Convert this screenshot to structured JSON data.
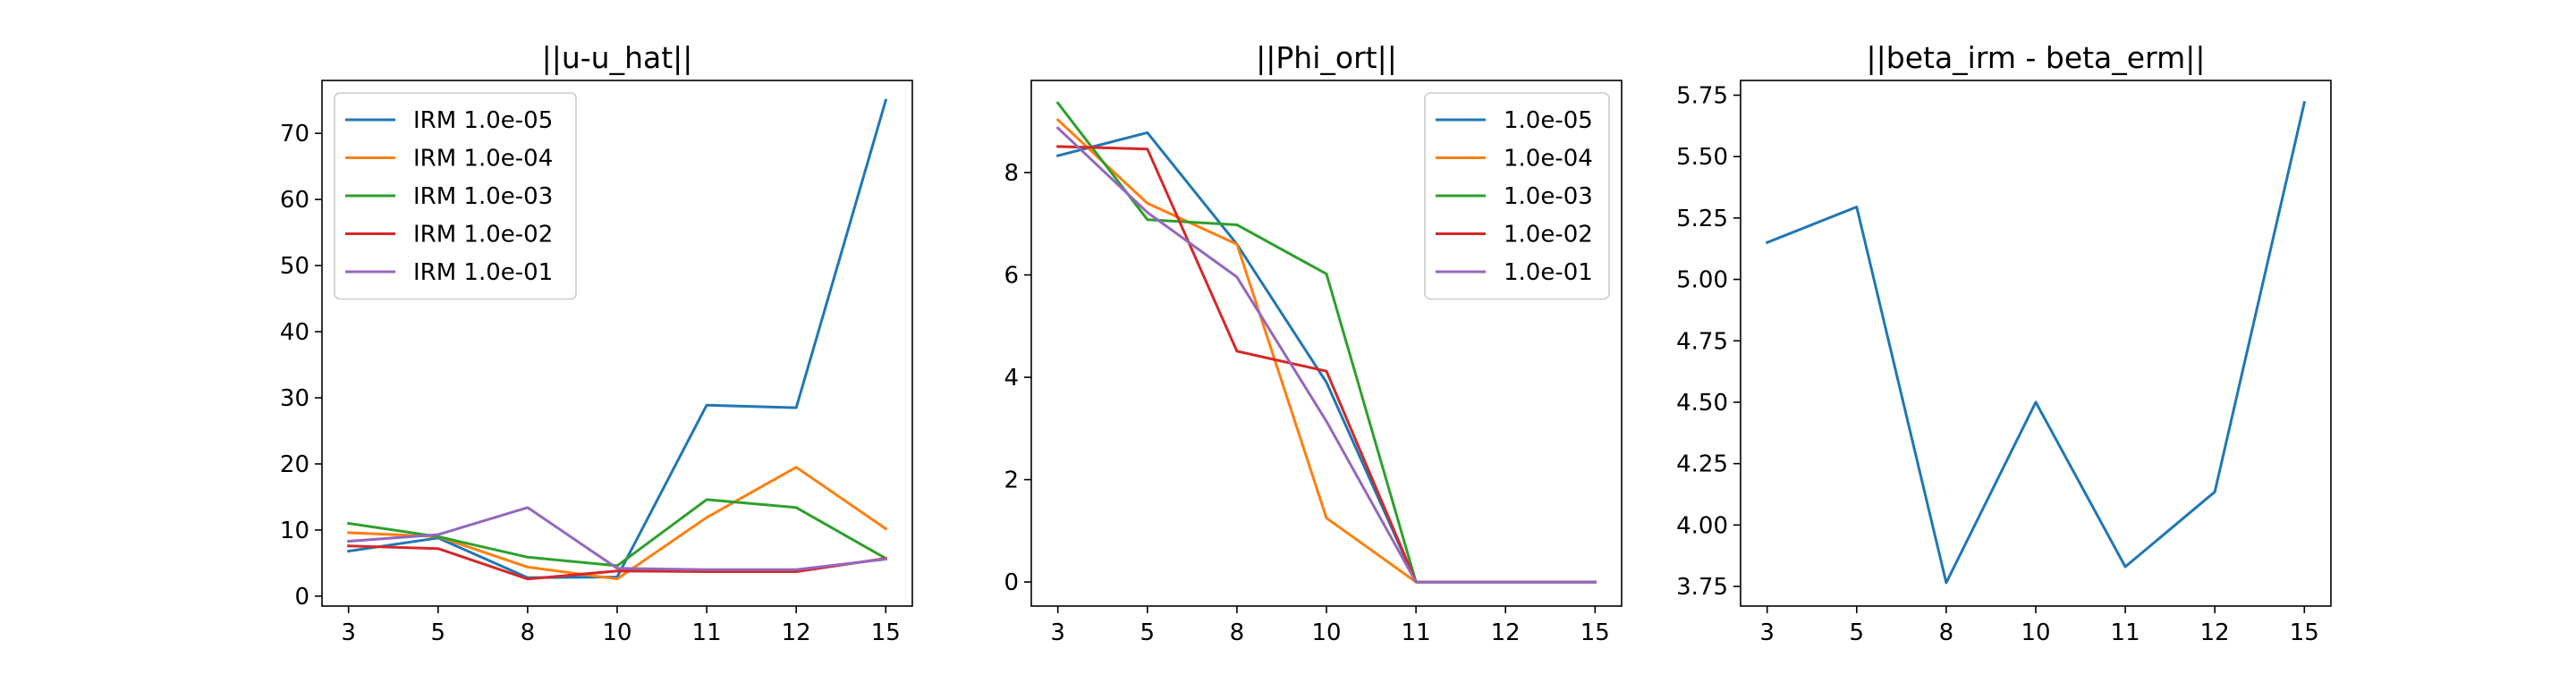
{
  "chart_data": [
    {
      "type": "line",
      "title": "||u-u_hat||",
      "categories": [
        "3",
        "5",
        "8",
        "10",
        "11",
        "12",
        "15"
      ],
      "ylim": [
        -1.5,
        78
      ],
      "yticks": [
        0,
        10,
        20,
        30,
        40,
        50,
        60,
        70
      ],
      "legend": "upper-left",
      "series": [
        {
          "name": "IRM 1.0e-05",
          "color": "#1f77b4",
          "values": [
            6.8,
            8.8,
            2.8,
            2.9,
            28.9,
            28.5,
            75.0
          ]
        },
        {
          "name": "IRM 1.0e-04",
          "color": "#ff7f0e",
          "values": [
            9.6,
            9.0,
            4.4,
            2.6,
            11.9,
            19.5,
            10.2
          ]
        },
        {
          "name": "IRM 1.0e-03",
          "color": "#2ca02c",
          "values": [
            11.0,
            9.0,
            5.9,
            4.6,
            14.6,
            13.4,
            5.7
          ]
        },
        {
          "name": "IRM 1.0e-02",
          "color": "#d62728",
          "values": [
            7.6,
            7.2,
            2.6,
            3.8,
            3.7,
            3.7,
            5.7
          ]
        },
        {
          "name": "IRM 1.0e-01",
          "color": "#9467bd",
          "values": [
            8.3,
            9.3,
            13.4,
            4.2,
            4.0,
            4.0,
            5.6
          ]
        }
      ]
    },
    {
      "type": "line",
      "title": "||Phi_ort||",
      "categories": [
        "3",
        "5",
        "8",
        "10",
        "11",
        "12",
        "15"
      ],
      "ylim": [
        -0.47,
        9.8
      ],
      "yticks": [
        0,
        2,
        4,
        6,
        8
      ],
      "legend": "upper-right",
      "series": [
        {
          "name": "1.0e-05",
          "color": "#1f77b4",
          "values": [
            8.33,
            8.78,
            6.6,
            3.9,
            0.0,
            0.0,
            0.0
          ]
        },
        {
          "name": "1.0e-04",
          "color": "#ff7f0e",
          "values": [
            9.03,
            7.4,
            6.6,
            1.25,
            0.0,
            0.0,
            0.0
          ]
        },
        {
          "name": "1.0e-03",
          "color": "#2ca02c",
          "values": [
            9.36,
            7.08,
            6.98,
            6.02,
            0.0,
            0.0,
            0.0
          ]
        },
        {
          "name": "1.0e-02",
          "color": "#d62728",
          "values": [
            8.51,
            8.46,
            4.51,
            4.12,
            0.0,
            0.0,
            0.0
          ]
        },
        {
          "name": "1.0e-01",
          "color": "#9467bd",
          "values": [
            8.87,
            7.22,
            5.96,
            3.14,
            0.0,
            0.0,
            0.0
          ]
        }
      ]
    },
    {
      "type": "line",
      "title": "||beta_irm - beta_erm||",
      "categories": [
        "3",
        "5",
        "8",
        "10",
        "11",
        "12",
        "15"
      ],
      "ylim": [
        3.67,
        5.81
      ],
      "yticks": [
        "3.75",
        "4.00",
        "4.25",
        "4.50",
        "4.75",
        "5.00",
        "5.25",
        "5.50",
        "5.75"
      ],
      "series": [
        {
          "color": "#1f77b4",
          "values": [
            5.15,
            5.295,
            3.765,
            4.5,
            3.83,
            4.135,
            5.72
          ]
        }
      ]
    }
  ]
}
